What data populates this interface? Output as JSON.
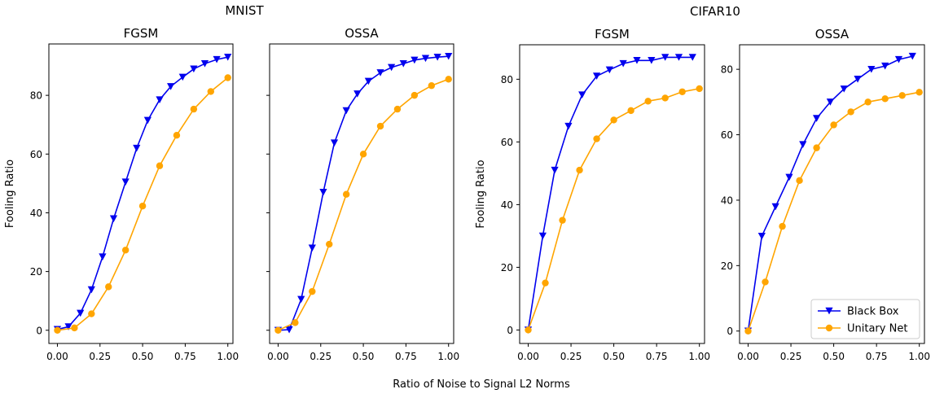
{
  "figure": {
    "group_titles": [
      "MNIST",
      "CIFAR10"
    ],
    "shared_xlabel": "Ratio of Noise to Signal L2 Norms",
    "legend": {
      "placement": "lower-right of last panel",
      "entries": [
        {
          "label": "Black Box",
          "color": "#0000ee",
          "marker": "triangle-down"
        },
        {
          "label": "Unitary Net",
          "color": "#ffa500",
          "marker": "circle"
        }
      ]
    },
    "colors": {
      "black_box": "#0000ee",
      "unitary_net": "#ffa500",
      "axes": "#000000"
    }
  },
  "chart_data": [
    {
      "type": "line",
      "group": "MNIST",
      "title": "FGSM",
      "xlabel": "",
      "ylabel": "Fooling Ratio",
      "xlim": [
        -0.05,
        1.03
      ],
      "ylim": [
        -4.5,
        97.5
      ],
      "xticks": [
        "0.00",
        "0.25",
        "0.50",
        "0.75",
        "1.00"
      ],
      "yticks": [
        "0",
        "20",
        "40",
        "60",
        "80"
      ],
      "show_ytick_labels": true,
      "grid": false,
      "series": [
        {
          "name": "Black Box",
          "x": [
            0,
            0.065,
            0.135,
            0.2,
            0.265,
            0.33,
            0.4,
            0.465,
            0.53,
            0.6,
            0.665,
            0.735,
            0.8,
            0.865,
            0.935,
            1.0
          ],
          "y": [
            0.3,
            1.2,
            5.8,
            13.8,
            25,
            38,
            50.5,
            62,
            71.5,
            78.5,
            83,
            86.2,
            89,
            90.8,
            92.2,
            93
          ]
        },
        {
          "name": "Unitary Net",
          "x": [
            0,
            0.1,
            0.2,
            0.3,
            0.4,
            0.5,
            0.6,
            0.7,
            0.8,
            0.9,
            1.0
          ],
          "y": [
            0,
            0.8,
            5.6,
            14.8,
            27.3,
            42.3,
            56,
            66.4,
            75.3,
            81.3,
            86
          ]
        }
      ]
    },
    {
      "type": "line",
      "group": "MNIST",
      "title": "OSSA",
      "xlabel": "",
      "ylabel": "",
      "xlim": [
        -0.05,
        1.03
      ],
      "ylim": [
        -4.5,
        97.5
      ],
      "xticks": [
        "0.00",
        "0.25",
        "0.50",
        "0.75",
        "1.00"
      ],
      "yticks": [
        "",
        "",
        "",
        "",
        ""
      ],
      "show_ytick_labels": false,
      "grid": false,
      "series": [
        {
          "name": "Black Box",
          "x": [
            0,
            0.065,
            0.135,
            0.2,
            0.265,
            0.33,
            0.4,
            0.465,
            0.53,
            0.6,
            0.665,
            0.735,
            0.8,
            0.865,
            0.935,
            1.0
          ],
          "y": [
            0,
            0.2,
            10.5,
            28,
            47,
            63.8,
            74.8,
            80.5,
            84.8,
            87.7,
            89.5,
            90.8,
            92,
            92.6,
            93,
            93.3
          ]
        },
        {
          "name": "Unitary Net",
          "x": [
            0,
            0.1,
            0.2,
            0.3,
            0.4,
            0.5,
            0.6,
            0.7,
            0.8,
            0.9,
            1.0
          ],
          "y": [
            0,
            2.6,
            13.2,
            29.3,
            46.3,
            60,
            69.5,
            75.3,
            80,
            83.3,
            85.5
          ]
        }
      ]
    },
    {
      "type": "line",
      "group": "CIFAR10",
      "title": "FGSM",
      "xlabel": "",
      "ylabel": "Fooling Ratio",
      "xlim": [
        -0.05,
        1.03
      ],
      "ylim": [
        -4.3,
        91
      ],
      "xticks": [
        "0.00",
        "0.25",
        "0.50",
        "0.75",
        "1.00"
      ],
      "yticks": [
        "0",
        "20",
        "40",
        "60",
        "80"
      ],
      "show_ytick_labels": true,
      "grid": false,
      "series": [
        {
          "name": "Black Box",
          "x": [
            0,
            0.085,
            0.155,
            0.235,
            0.315,
            0.4,
            0.475,
            0.555,
            0.635,
            0.72,
            0.8,
            0.88,
            0.96
          ],
          "y": [
            0,
            30,
            51,
            65,
            75,
            81,
            83,
            85,
            86,
            86,
            87,
            87,
            87
          ]
        },
        {
          "name": "Unitary Net",
          "x": [
            0,
            0.1,
            0.2,
            0.3,
            0.4,
            0.5,
            0.6,
            0.7,
            0.8,
            0.9,
            1.0
          ],
          "y": [
            0,
            15,
            35,
            51,
            61,
            67,
            70,
            73,
            74,
            76,
            77
          ]
        }
      ]
    },
    {
      "type": "line",
      "group": "CIFAR10",
      "title": "OSSA",
      "xlabel": "",
      "ylabel": "",
      "xlim": [
        -0.05,
        1.03
      ],
      "ylim": [
        -3.8,
        87.5
      ],
      "xticks": [
        "0.00",
        "0.25",
        "0.50",
        "0.75",
        "1.00"
      ],
      "yticks": [
        "0",
        "20",
        "40",
        "60",
        "80"
      ],
      "show_ytick_labels": true,
      "grid": false,
      "series": [
        {
          "name": "Black Box",
          "x": [
            0,
            0.08,
            0.16,
            0.24,
            0.32,
            0.4,
            0.48,
            0.56,
            0.64,
            0.72,
            0.8,
            0.88,
            0.96
          ],
          "y": [
            0,
            29,
            38,
            47,
            57,
            65,
            70,
            74,
            77,
            80,
            81,
            83,
            84
          ]
        },
        {
          "name": "Unitary Net",
          "x": [
            0,
            0.1,
            0.2,
            0.3,
            0.4,
            0.5,
            0.6,
            0.7,
            0.8,
            0.9,
            1.0
          ],
          "y": [
            0,
            15,
            32,
            46,
            56,
            63,
            67,
            70,
            71,
            72,
            73
          ]
        }
      ]
    }
  ]
}
